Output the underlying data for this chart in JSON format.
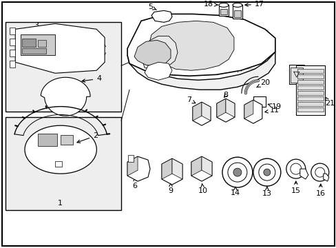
{
  "bg": "#ffffff",
  "fw": 4.89,
  "fh": 3.6,
  "dpi": 100,
  "lw_main": 1.0,
  "lw_thin": 0.6,
  "lw_thick": 1.2,
  "label_fs": 8,
  "gray_fill": "#d8d8d8",
  "light_gray": "#eeeeee"
}
